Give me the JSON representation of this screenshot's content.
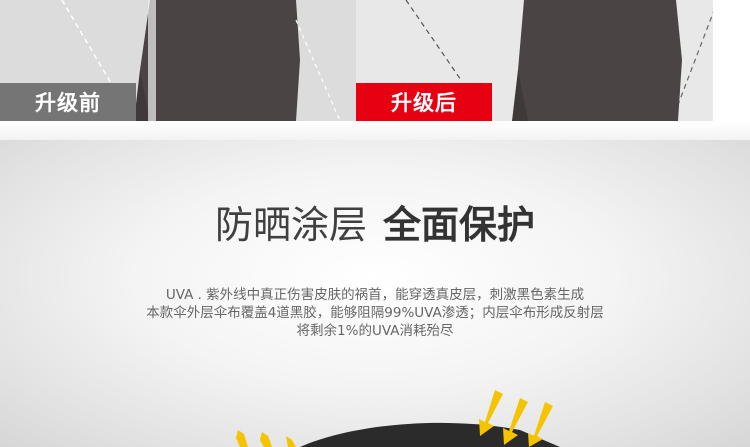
{
  "compare": {
    "before_label": "升级前",
    "after_label": "升级后",
    "colors": {
      "before_tag": "#757575",
      "after_tag": "#e60012",
      "figure": "#4a4544"
    }
  },
  "feature": {
    "title_light": "防晒涂层",
    "title_bold": "全面保护",
    "desc_lines": [
      "UVA . 紫外线中真正伤害皮肤的祸首，能穿透真皮层，刺激黑色素生成",
      "本款伞外层伞布覆盖4道黑胶，能够阻隔99%UVA渗透；内层伞布形成反射层",
      "将剩余1%的UVA消耗殆尽"
    ],
    "colors": {
      "arrow": "#f5c400",
      "umbrella": "#2b2b2b"
    }
  }
}
